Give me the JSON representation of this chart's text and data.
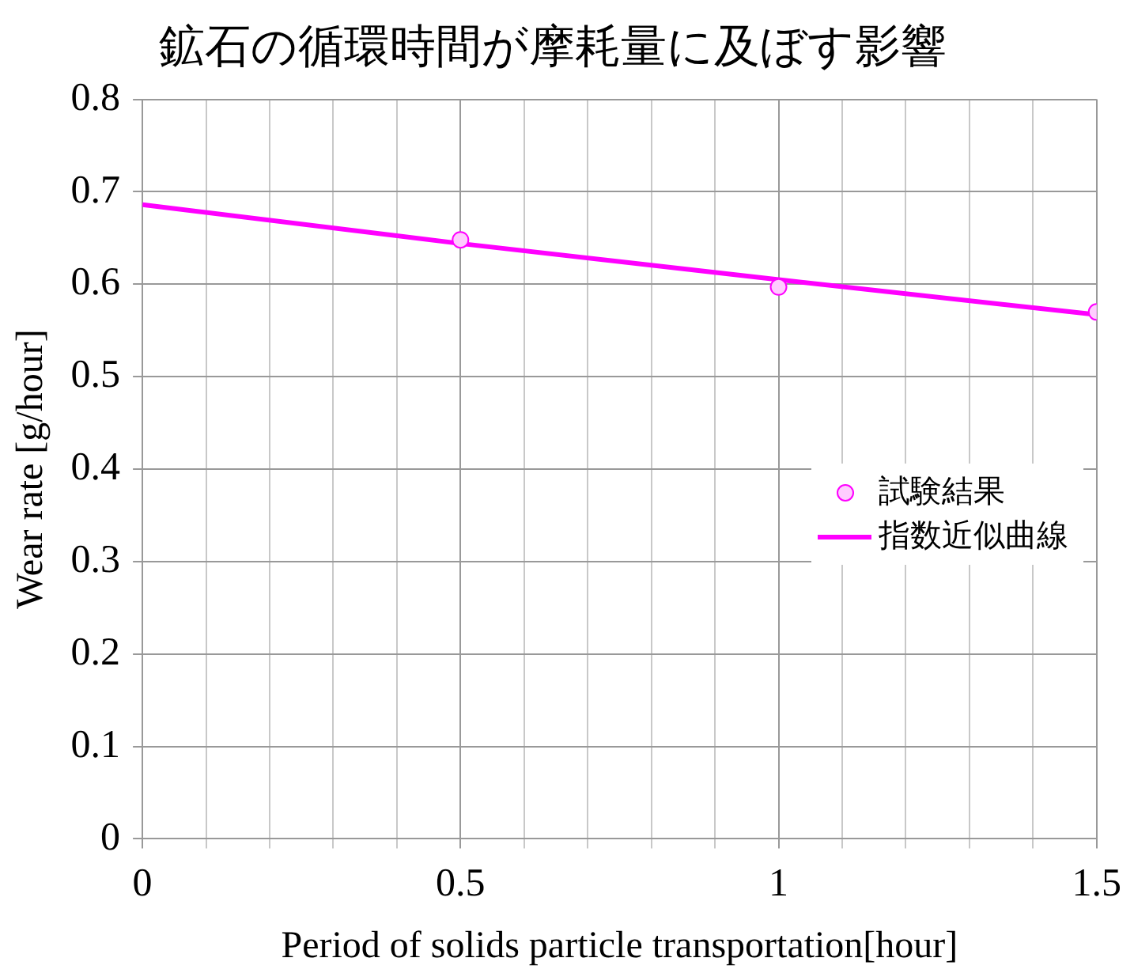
{
  "chart_data": {
    "type": "scatter",
    "title": "鉱石の循環時間が摩耗量に及ぼす影響",
    "xlabel": "Period of solids particle transportation[hour]",
    "ylabel": "Wear rate [g/hour]",
    "series": [
      {
        "name": "試験結果",
        "type": "scatter",
        "marker": "circle",
        "color": "#ff00ff",
        "x": [
          0.5,
          1,
          1.5
        ],
        "values": [
          0.648,
          0.597,
          0.57
        ]
      },
      {
        "name": "指数近似曲線",
        "type": "line",
        "marker": "none",
        "color": "#ff00ff",
        "x": [
          0,
          0.5,
          1,
          1.5
        ],
        "values": [
          0.686,
          0.644,
          0.605,
          0.567
        ]
      }
    ],
    "xlim": [
      0,
      1.5
    ],
    "xticks": [
      0,
      {
        "value": 0.1,
        "label": null
      },
      {
        "value": 0.2,
        "label": null
      },
      {
        "value": 0.3,
        "label": null
      },
      {
        "value": 0.4,
        "label": null
      },
      0.5,
      {
        "value": 0.6,
        "label": null
      },
      {
        "value": 0.7,
        "label": null
      },
      {
        "value": 0.8,
        "label": null
      },
      {
        "value": 0.9,
        "label": null
      },
      1,
      {
        "value": 1.1,
        "label": null
      },
      {
        "value": 1.2,
        "label": null
      },
      {
        "value": 1.3,
        "label": null
      },
      {
        "value": 1.4,
        "label": null
      },
      1.5
    ],
    "ylim": [
      0,
      0.8
    ],
    "yticks": [
      0,
      0.1,
      0.2,
      0.3,
      0.4,
      0.5,
      0.6,
      0.7,
      0.8
    ],
    "grid": true,
    "legend": "right"
  }
}
